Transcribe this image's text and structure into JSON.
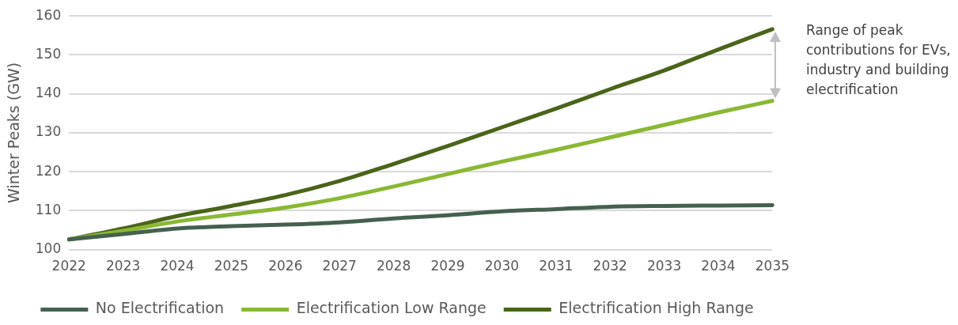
{
  "chart_data": {
    "type": "line",
    "ylabel": "Winter Peaks (GW)",
    "categories": [
      "2022",
      "2023",
      "2024",
      "2025",
      "2026",
      "2027",
      "2028",
      "2029",
      "2030",
      "2031",
      "2032",
      "2033",
      "2034",
      "2035"
    ],
    "series": [
      {
        "name": "No Electrification",
        "color": "#466050",
        "values": [
          102.6,
          104,
          105.4,
          106,
          106.4,
          107,
          108,
          108.8,
          109.8,
          110.4,
          111,
          111.2,
          111.3,
          111.4
        ]
      },
      {
        "name": "Electrification Low Range",
        "color": "#8ab833",
        "values": [
          102.6,
          104.8,
          107.2,
          109,
          110.8,
          113.2,
          116.2,
          119.4,
          122.6,
          125.6,
          128.8,
          132,
          135.2,
          138.2
        ]
      },
      {
        "name": "Electrification High Range",
        "color": "#4a6419",
        "values": [
          102.6,
          105.4,
          108.6,
          111.2,
          114,
          117.6,
          122,
          126.6,
          131.4,
          136.2,
          141.2,
          146,
          151.4,
          156.6
        ]
      }
    ],
    "ylim": [
      100,
      160
    ],
    "yticks": [
      100,
      110,
      120,
      130,
      140,
      150,
      160
    ],
    "grid": "y",
    "legend": "bottom",
    "marker": "none",
    "line_style": "solid",
    "annotations": [
      "Range of peak contributions for EVs, industry and building electrification"
    ]
  }
}
